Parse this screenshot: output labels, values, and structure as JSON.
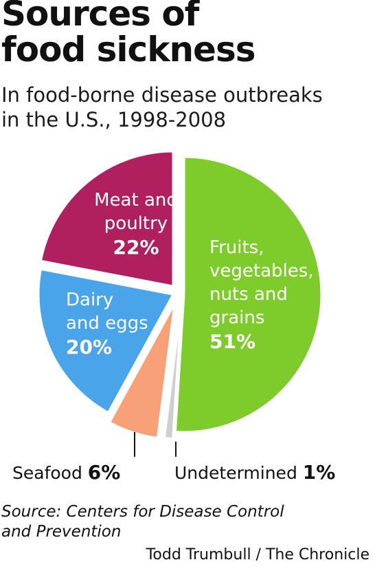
{
  "chart_data": {
    "type": "pie",
    "title": "Sources of\nfood sickness",
    "subtitle": "In food-borne disease outbreaks\nin the U.S., 1998-2008",
    "slices": [
      {
        "label": "Fruits,\nvegetables,\nnuts and\ngrains",
        "value": 51,
        "value_label": "51%",
        "color": "#7dcc2c"
      },
      {
        "label": "Undetermined",
        "value": 1,
        "value_label": "1%",
        "color": "#cfcfcf"
      },
      {
        "label": "Seafood",
        "value": 6,
        "value_label": "6%",
        "color": "#f8a077"
      },
      {
        "label": "Dairy\nand eggs",
        "value": 20,
        "value_label": "20%",
        "color": "#4aa4ea"
      },
      {
        "label": "Meat and\npoultry",
        "value": 22,
        "value_label": "22%",
        "color": "#b01f5e"
      }
    ],
    "start_angle_deg": 0,
    "direction": "clockwise",
    "source": "Source: Centers for Disease Control\nand Prevention",
    "credit": "Todd Trumbull / The Chronicle"
  }
}
